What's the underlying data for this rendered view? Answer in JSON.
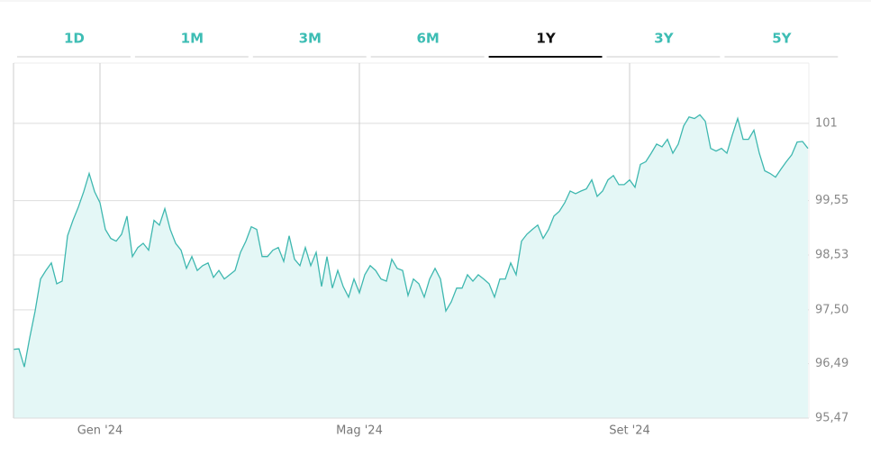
{
  "tabs": [
    "1D",
    "1M",
    "3M",
    "6M",
    "1Y",
    "3Y",
    "5Y"
  ],
  "selected_tab": "1Y",
  "chart_data": {
    "type": "area",
    "color": "#3fb8b0",
    "fill": "#e4f7f6",
    "grid": true,
    "categories": [
      null,
      null,
      null,
      null,
      null,
      null,
      null,
      null,
      null,
      null,
      null,
      null,
      null,
      null,
      null,
      null,
      "Gen '24",
      null,
      null,
      null,
      null,
      null,
      null,
      null,
      null,
      null,
      null,
      null,
      null,
      null,
      null,
      null,
      null,
      null,
      null,
      null,
      null,
      null,
      null,
      null,
      null,
      null,
      null,
      null,
      null,
      null,
      null,
      null,
      null,
      null,
      null,
      null,
      null,
      null,
      null,
      null,
      null,
      null,
      null,
      null,
      null,
      null,
      null,
      null,
      "Mag '24",
      null,
      null,
      null,
      null,
      null,
      null,
      null,
      null,
      null,
      null,
      null,
      null,
      null,
      null,
      null,
      null,
      null,
      null,
      null,
      null,
      null,
      null,
      null,
      null,
      null,
      null,
      null,
      null,
      null,
      null,
      null,
      null,
      null,
      null,
      null,
      null,
      null,
      null,
      null,
      null,
      null,
      null,
      null,
      null,
      null,
      null,
      null,
      null,
      null,
      "Set '24",
      null,
      null,
      null,
      null,
      null,
      null,
      null,
      null,
      null,
      null,
      null,
      null,
      null,
      null,
      null,
      null,
      null,
      null,
      null,
      null,
      null,
      null,
      null,
      null,
      null,
      null,
      null,
      null,
      null,
      null,
      null,
      null,
      null
    ],
    "values": [
      96.76,
      96.77,
      96.43,
      96.98,
      97.48,
      98.08,
      98.24,
      98.38,
      97.99,
      98.04,
      98.89,
      99.18,
      99.43,
      99.72,
      100.06,
      99.72,
      99.51,
      99.01,
      98.84,
      98.79,
      98.92,
      99.26,
      98.5,
      98.67,
      98.75,
      98.62,
      99.18,
      99.09,
      99.4,
      99.01,
      98.75,
      98.62,
      98.28,
      98.5,
      98.24,
      98.33,
      98.38,
      98.11,
      98.24,
      98.08,
      98.16,
      98.24,
      98.58,
      98.79,
      99.06,
      99.01,
      98.5,
      98.5,
      98.62,
      98.67,
      98.41,
      98.89,
      98.45,
      98.33,
      98.67,
      98.33,
      98.58,
      97.94,
      98.5,
      97.91,
      98.24,
      97.94,
      97.74,
      98.08,
      97.82,
      98.16,
      98.33,
      98.24,
      98.08,
      98.04,
      98.45,
      98.28,
      98.24,
      97.77,
      98.08,
      97.99,
      97.74,
      98.08,
      98.28,
      98.08,
      97.48,
      97.65,
      97.91,
      97.91,
      98.16,
      98.04,
      98.16,
      98.08,
      97.99,
      97.74,
      98.08,
      98.08,
      98.38,
      98.16,
      98.79,
      98.92,
      99.01,
      99.09,
      98.84,
      99.01,
      99.26,
      99.35,
      99.51,
      99.73,
      99.68,
      99.73,
      99.77,
      99.94,
      99.63,
      99.73,
      99.94,
      100.02,
      99.85,
      99.85,
      99.94,
      99.8,
      100.23,
      100.28,
      100.44,
      100.61,
      100.56,
      100.7,
      100.44,
      100.61,
      100.95,
      101.12,
      101.09,
      101.16,
      101.04,
      100.53,
      100.48,
      100.53,
      100.44,
      100.78,
      101.09,
      100.7,
      100.7,
      100.87,
      100.44,
      100.11,
      100.06,
      99.99,
      100.14,
      100.28,
      100.41,
      100.65,
      100.66,
      100.53
    ],
    "ylim": [
      95.47,
      102.13
    ],
    "yticks": [
      {
        "value": 95.47,
        "label": "95,47"
      },
      {
        "value": 96.49,
        "label": "96,49"
      },
      {
        "value": 97.5,
        "label": "97,50"
      },
      {
        "value": 98.53,
        "label": "98,53"
      },
      {
        "value": 99.55,
        "label": "99,55"
      },
      101
    ]
  }
}
